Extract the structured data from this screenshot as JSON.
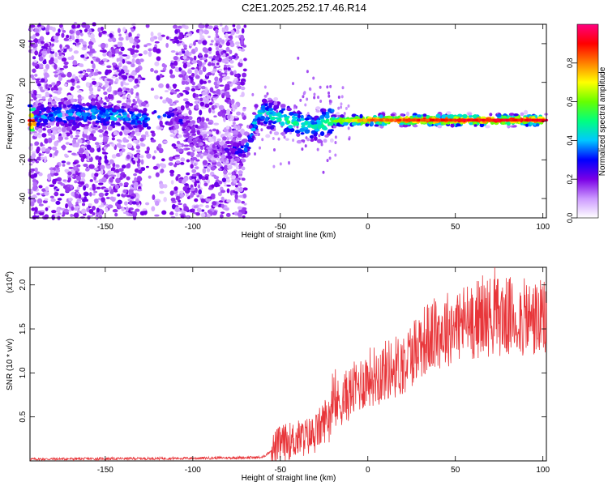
{
  "title": "C2E1.2025.252.17.46.R14",
  "chart_data": [
    {
      "type": "heatmap",
      "title": "C2E1.2025.252.17.46.R14",
      "xlabel": "Height of straight line (km)",
      "ylabel": "Frequency (Hz)",
      "xlim": [
        -193,
        102
      ],
      "ylim": [
        -50,
        50
      ],
      "xticks": [
        -150,
        -100,
        -50,
        0,
        50,
        100
      ],
      "yticks": [
        -40,
        -20,
        0,
        20,
        40
      ],
      "colorbar": {
        "label": "Normalized spectral amplitude",
        "range": [
          0,
          1
        ],
        "ticks": [
          0.0,
          0.2,
          0.4,
          0.6,
          0.8
        ],
        "colors": [
          "#ffffff",
          "#cc99ff",
          "#7a00e6",
          "#0000ff",
          "#00c8ff",
          "#00ff80",
          "#66ff00",
          "#ffff00",
          "#ff8000",
          "#ff0000",
          "#ff0080"
        ]
      },
      "ridge": [
        {
          "x": -190,
          "freq": 2,
          "amp": 0.35
        },
        {
          "x": -160,
          "freq": 4,
          "amp": 0.4
        },
        {
          "x": -140,
          "freq": 2,
          "amp": 0.4
        },
        {
          "x": -128,
          "freq": 1,
          "amp": 0.35
        },
        {
          "x": -110,
          "freq": 3,
          "amp": 0.25
        },
        {
          "x": -90,
          "freq": -15,
          "amp": 0.15
        },
        {
          "x": -70,
          "freq": -15,
          "amp": 0.3
        },
        {
          "x": -62,
          "freq": 5,
          "amp": 0.45
        },
        {
          "x": -45,
          "freq": 0,
          "amp": 0.5
        },
        {
          "x": -30,
          "freq": -3,
          "amp": 0.45
        },
        {
          "x": -22,
          "freq": 0,
          "amp": 0.6
        },
        {
          "x": 0,
          "freq": 0.5,
          "amp": 0.85
        },
        {
          "x": 50,
          "freq": 0.5,
          "amp": 0.95
        },
        {
          "x": 100,
          "freq": 0.5,
          "amp": 0.95
        }
      ]
    },
    {
      "type": "line",
      "xlabel": "Height of straight line (km)",
      "ylabel": "SNR (10 * v/v)",
      "y_multiplier_label": "(x10",
      "y_multiplier_exp": "4",
      "y_multiplier_close": ")",
      "xlim": [
        -193,
        102
      ],
      "ylim": [
        0,
        2.2
      ],
      "xticks": [
        -150,
        -100,
        -50,
        0,
        50,
        100
      ],
      "yticks": [
        0.5,
        1.0,
        1.5,
        2.0
      ],
      "series": [
        {
          "name": "SNR",
          "color": "#e8363a",
          "trend": [
            {
              "x": -193,
              "y": 0.02
            },
            {
              "x": -100,
              "y": 0.03
            },
            {
              "x": -60,
              "y": 0.04
            },
            {
              "x": -50,
              "y": 0.2
            },
            {
              "x": -30,
              "y": 0.3
            },
            {
              "x": -20,
              "y": 0.6
            },
            {
              "x": 0,
              "y": 0.95
            },
            {
              "x": 20,
              "y": 1.1
            },
            {
              "x": 30,
              "y": 1.35
            },
            {
              "x": 50,
              "y": 1.55
            },
            {
              "x": 70,
              "y": 1.65
            },
            {
              "x": 100,
              "y": 1.6
            }
          ]
        }
      ]
    }
  ]
}
